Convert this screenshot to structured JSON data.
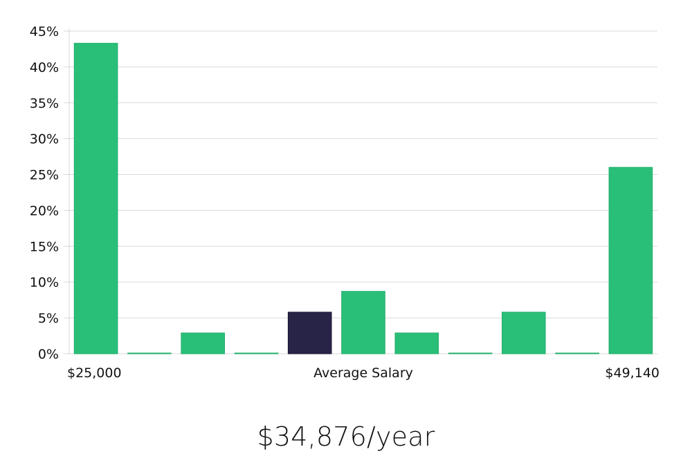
{
  "colors": {
    "bar": "#2abf78",
    "highlight": "#282447",
    "grid": "#d9d9d9",
    "text": "#111111"
  },
  "chart_data": {
    "type": "bar",
    "title": "",
    "xlabel": "Average Salary",
    "ylabel": "",
    "x_min_label": "$25,000",
    "x_max_label": "$49,140",
    "ylim": [
      0,
      45
    ],
    "yticks": [
      "0%",
      "5%",
      "10%",
      "15%",
      "20%",
      "25%",
      "30%",
      "35%",
      "40%",
      "45%"
    ],
    "grid": true,
    "highlight_index": 4,
    "values": [
      43.3,
      0.1,
      2.9,
      0.1,
      5.8,
      8.7,
      2.9,
      0.1,
      5.8,
      0.1,
      26.0
    ]
  },
  "summary": {
    "salary": "$34,876/year"
  }
}
